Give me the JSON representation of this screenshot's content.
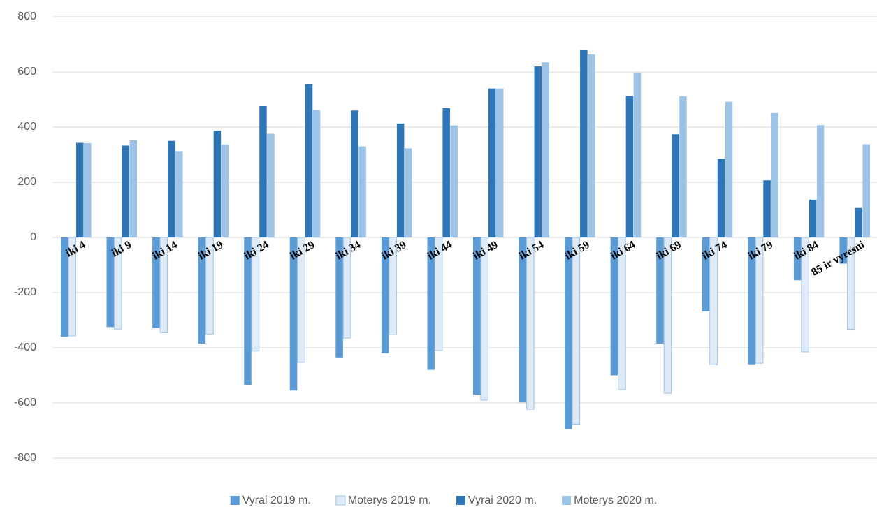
{
  "chart_data": {
    "type": "bar",
    "categories": [
      "iki 4",
      "iki 9",
      "iki 14",
      "iki 19",
      "iki 24",
      "iki 29",
      "iki 34",
      "iki 39",
      "iki 44",
      "iki 49",
      "iki 54",
      "iki 59",
      "iki 64",
      "iki 69",
      "iki 74",
      "iki 79",
      "iki 84",
      "85 ir vyresni"
    ],
    "series": [
      {
        "name": "Vyrai 2019 m.",
        "color": "#5b9bd5",
        "values": [
          -360,
          -325,
          -328,
          -385,
          -535,
          -555,
          -435,
          -420,
          -480,
          -570,
          -598,
          -695,
          -500,
          -385,
          -268,
          -460,
          -155,
          -95
        ]
      },
      {
        "name": "Moterys 2019 m.",
        "color": "#deebf7",
        "values": [
          -357,
          -332,
          -345,
          -350,
          -412,
          -453,
          -365,
          -353,
          -410,
          -590,
          -623,
          -677,
          -552,
          -565,
          -462,
          -456,
          -415,
          -333
        ]
      },
      {
        "name": "Vyrai 2020 m.",
        "color": "#2e75b6",
        "values": [
          343,
          333,
          350,
          387,
          476,
          556,
          460,
          413,
          469,
          540,
          620,
          679,
          512,
          374,
          285,
          207,
          137,
          107
        ]
      },
      {
        "name": "Moterys 2020 m.",
        "color": "#9dc3e6",
        "values": [
          342,
          352,
          313,
          337,
          376,
          462,
          330,
          323,
          406,
          540,
          635,
          663,
          598,
          512,
          492,
          451,
          407,
          338
        ]
      }
    ],
    "ylim": [
      -800,
      800
    ],
    "yticks": [
      -800,
      -600,
      -400,
      -200,
      0,
      200,
      400,
      600,
      800
    ],
    "grid": true,
    "legend": "bottom"
  }
}
